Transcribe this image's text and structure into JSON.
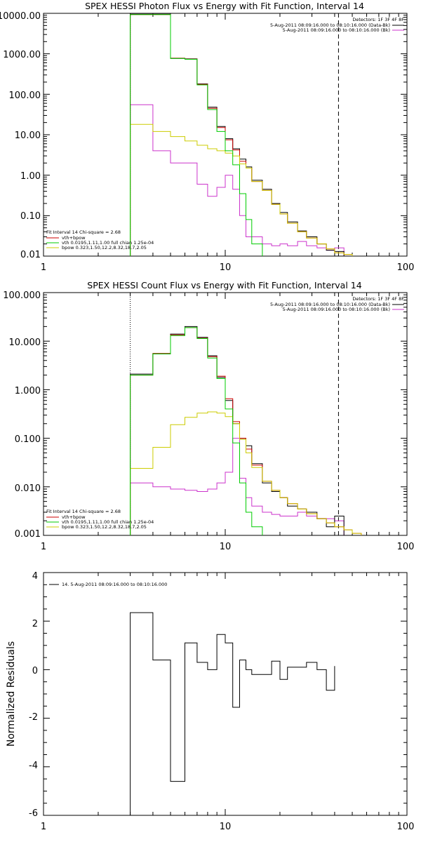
{
  "chart_data": [
    {
      "type": "line",
      "title": "SPEX HESSI Photon Flux vs Energy with Fit Function, Interval 14",
      "xscale": "log",
      "yscale": "log",
      "xlim": [
        1,
        100
      ],
      "ylim": [
        0.01,
        10000
      ],
      "x_ticks": [
        "1",
        "10",
        "100"
      ],
      "y_ticks": [
        "10000.00",
        "1000.00",
        "100.00",
        "10.00",
        "1.00",
        "0.10",
        "0.01"
      ],
      "grid": false,
      "legend_top": {
        "position": "top-right",
        "detectors": "Detectors: 1F 3F 4F 8F",
        "entries": [
          {
            "text": "5-Aug-2011 08:09:16.000 to 08:10:16.000 (Data-Bk)",
            "color": "#000000"
          },
          {
            "text": "5-Aug-2011 08:09:16.000 to 08:10:16.000 (Bk)",
            "color": "#cc33cc"
          }
        ]
      },
      "legend_bottom": {
        "position": "bottom-left",
        "header": "Fit Interval 14   Chi-square = 2.68",
        "entries": [
          {
            "text": "vth+bpow",
            "color": "#cc0000"
          },
          {
            "text": "vth 0.0195,1.11,1.00  full chian 1.25e-04",
            "color": "#00cc00"
          },
          {
            "text": "bpow 0.323,1.50,12.2,8.32,18.7,2.05",
            "color": "#cccc00"
          }
        ]
      },
      "vlines": [
        {
          "x": 3.0,
          "style": "dotted",
          "color": "#000000"
        },
        {
          "x": 42.0,
          "style": "dashed",
          "color": "#000000"
        }
      ],
      "edges": [
        3.0,
        4.0,
        5.0,
        6.0,
        7.0,
        8.0,
        9.0,
        10.0,
        11.0,
        12.0,
        13.0,
        14.0,
        16.0,
        18.0,
        20.0,
        22.0,
        25.0,
        28.0,
        32.0,
        36.0,
        40.0,
        45.0,
        50.0,
        56.0,
        63.0
      ],
      "series": [
        {
          "name": "Data-Bk",
          "color": "#000000",
          "values": [
            9500,
            9500,
            770,
            750,
            180,
            48,
            16,
            8,
            4.5,
            2.5,
            1.6,
            0.75,
            0.45,
            0.2,
            0.12,
            0.07,
            0.042,
            0.03,
            0.02,
            0.014,
            0.013,
            null,
            null,
            null
          ]
        },
        {
          "name": "Bk",
          "color": "#cc33cc",
          "values": [
            55,
            4,
            2.0,
            2.0,
            0.6,
            0.3,
            0.5,
            1.0,
            0.45,
            0.1,
            0.03,
            0.03,
            0.02,
            0.018,
            0.02,
            0.018,
            0.023,
            0.018,
            0.016,
            0.014,
            0.016,
            null,
            null,
            null
          ]
        },
        {
          "name": "vth+bpow",
          "color": "#cc0000",
          "values": [
            9300,
            9300,
            780,
            740,
            175,
            45,
            15,
            7.5,
            4.2,
            2.2,
            1.5,
            0.7,
            0.42,
            0.19,
            0.11,
            0.065,
            0.04,
            0.028,
            0.02,
            0.015,
            0.012,
            0.011,
            null,
            null
          ]
        },
        {
          "name": "vth",
          "color": "#00cc00",
          "values": [
            9300,
            9300,
            770,
            730,
            170,
            42,
            12,
            4.0,
            1.8,
            0.35,
            0.08,
            0.02,
            null,
            null,
            null,
            null,
            null,
            null,
            null,
            null,
            null,
            null,
            null,
            null
          ]
        },
        {
          "name": "bpow",
          "color": "#cccc00",
          "values": [
            18,
            12,
            9,
            7,
            5.5,
            4.5,
            4.0,
            3.5,
            3.0,
            1.9,
            1.5,
            0.7,
            0.42,
            0.19,
            0.11,
            0.065,
            0.04,
            0.028,
            0.02,
            0.015,
            0.012,
            0.011,
            null,
            null
          ]
        }
      ]
    },
    {
      "type": "line",
      "title": "SPEX HESSI Count Flux vs Energy with Fit Function, Interval 14",
      "xscale": "log",
      "yscale": "log",
      "xlim": [
        1,
        100
      ],
      "ylim": [
        0.001,
        100
      ],
      "x_ticks": [
        "1",
        "10",
        "100"
      ],
      "y_ticks": [
        "100.000",
        "10.000",
        "1.000",
        "0.100",
        "0.010",
        "0.001"
      ],
      "grid": false,
      "legend_top": {
        "position": "top-right",
        "detectors": "Detectors: 1F 3F 4F 8F",
        "entries": [
          {
            "text": "5-Aug-2011 08:09:16.000 to 08:10:16.000 (Data-Bk)",
            "color": "#000000"
          },
          {
            "text": "5-Aug-2011 08:09:16.000 to 08:10:16.000 (Bk)",
            "color": "#cc33cc"
          }
        ]
      },
      "legend_bottom": {
        "position": "bottom-left",
        "header": "Fit Interval 14   Chi-square = 2.68",
        "entries": [
          {
            "text": "vth+bpow",
            "color": "#cc0000"
          },
          {
            "text": "vth 0.0195,1.11,1.00  full chian 1.25e-04",
            "color": "#00cc00"
          },
          {
            "text": "bpow 0.323,1.50,12.2,8.32,18.7,2.05",
            "color": "#cccc00"
          }
        ]
      },
      "vlines": [
        {
          "x": 3.0,
          "style": "dotted",
          "color": "#000000"
        },
        {
          "x": 42.0,
          "style": "dashed",
          "color": "#000000"
        }
      ],
      "edges": [
        3.0,
        4.0,
        5.0,
        6.0,
        7.0,
        8.0,
        9.0,
        10.0,
        11.0,
        12.0,
        13.0,
        14.0,
        16.0,
        18.0,
        20.0,
        22.0,
        25.0,
        28.0,
        32.0,
        36.0,
        40.0,
        45.0,
        50.0,
        56.0,
        63.0
      ],
      "series": [
        {
          "name": "Data-Bk",
          "color": "#000000",
          "values": [
            2.1,
            5.5,
            14,
            20,
            12,
            5.0,
            1.8,
            0.6,
            0.2,
            0.1,
            0.07,
            0.03,
            0.012,
            0.008,
            0.006,
            0.004,
            0.0035,
            0.003,
            0.0022,
            0.0015,
            0.0025,
            null,
            null,
            null
          ]
        },
        {
          "name": "Bk",
          "color": "#cc33cc",
          "values": [
            0.012,
            0.01,
            0.009,
            0.0085,
            0.008,
            0.009,
            0.012,
            0.02,
            0.1,
            0.015,
            0.006,
            0.004,
            0.003,
            0.0027,
            0.0025,
            0.0025,
            0.003,
            0.0025,
            0.0022,
            0.0022,
            0.002,
            null,
            null,
            null
          ]
        },
        {
          "name": "vth+bpow",
          "color": "#cc0000",
          "values": [
            2.0,
            5.6,
            13.5,
            19,
            11.5,
            4.8,
            1.9,
            0.65,
            0.22,
            0.1,
            0.06,
            0.028,
            0.013,
            0.0085,
            0.006,
            0.0045,
            0.0035,
            0.0028,
            0.0022,
            0.0018,
            0.0015,
            0.0013,
            0.0011,
            null
          ]
        },
        {
          "name": "vth",
          "color": "#00cc00",
          "values": [
            2.0,
            5.5,
            13,
            19,
            11.3,
            4.5,
            1.7,
            0.4,
            0.08,
            0.012,
            0.003,
            0.0015,
            null,
            null,
            null,
            null,
            null,
            null,
            null,
            null,
            null,
            null,
            null,
            null
          ]
        },
        {
          "name": "bpow",
          "color": "#cccc00",
          "values": [
            0.024,
            0.065,
            0.19,
            0.27,
            0.33,
            0.35,
            0.33,
            0.28,
            0.2,
            0.095,
            0.05,
            0.025,
            0.013,
            0.0085,
            0.006,
            0.0045,
            0.0035,
            0.0028,
            0.0022,
            0.0018,
            0.0015,
            0.0013,
            0.0011,
            null
          ]
        }
      ]
    },
    {
      "type": "line",
      "title": "",
      "ylabel": "Normalized Residuals",
      "xscale": "log",
      "xlim": [
        1,
        100
      ],
      "ylim": [
        -6,
        4
      ],
      "x_ticks": [
        "1",
        "10",
        "100"
      ],
      "y_ticks": [
        "4",
        "2",
        "0",
        "-2",
        "-4",
        "-6"
      ],
      "grid": false,
      "legend": {
        "position": "top-left",
        "entries": [
          {
            "text": "14.  5-Aug-2011 08:09:16.000 to 08:10:16.000",
            "color": "#000000"
          }
        ]
      },
      "edges": [
        3.0,
        4.0,
        5.0,
        6.0,
        7.0,
        8.0,
        9.0,
        10.0,
        11.0,
        12.0,
        13.0,
        14.0,
        16.0,
        18.0,
        20.0,
        22.0,
        25.0,
        28.0,
        32.0,
        36.0,
        40.0
      ],
      "series": [
        {
          "name": "14",
          "color": "#000000",
          "values": [
            2.35,
            0.4,
            -4.6,
            1.1,
            0.3,
            0.0,
            1.45,
            1.1,
            -1.55,
            0.4,
            0.0,
            -0.2,
            -0.2,
            0.35,
            -0.4,
            0.1,
            0.1,
            0.3,
            0.0,
            -0.85,
            0.15
          ]
        }
      ]
    }
  ]
}
